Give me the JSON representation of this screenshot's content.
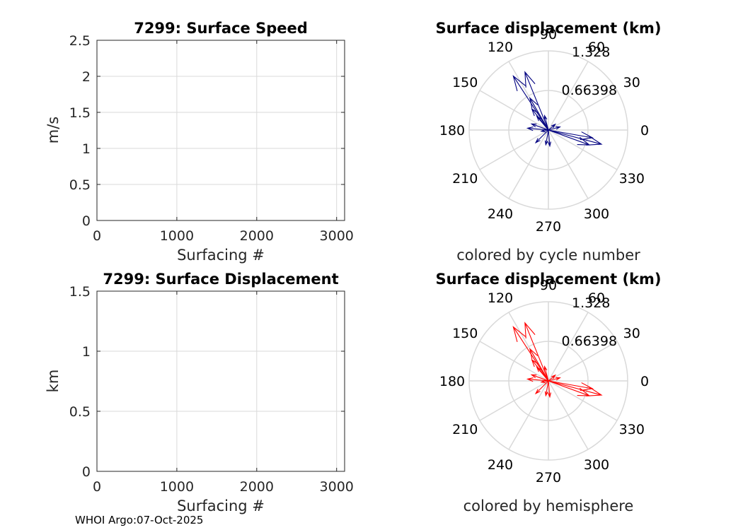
{
  "footer": "WHOI Argo:07-Oct-2025",
  "colors": {
    "vectors_cycle": "#000080",
    "vectors_hemisphere": "#ff0000",
    "grid": "#d9d9d9",
    "axis": "#262626"
  },
  "chart_data": [
    {
      "id": "speed",
      "type": "line",
      "title": "7299: Surface Speed",
      "xlabel": "Surfacing #",
      "ylabel": "m/s",
      "xlim": [
        0,
        3100
      ],
      "ylim": [
        0,
        2.5
      ],
      "xticks": [
        0,
        1000,
        2000,
        3000
      ],
      "xtick_labels": [
        "0",
        "1000",
        "2000",
        "3000"
      ],
      "yticks": [
        0,
        0.5,
        1,
        1.5,
        2,
        2.5
      ],
      "ytick_labels": [
        "0",
        "0.5",
        "1",
        "1.5",
        "2",
        "2.5"
      ],
      "grid": true,
      "series": []
    },
    {
      "id": "disp",
      "type": "line",
      "title": "7299: Surface Displacement",
      "xlabel": "Surfacing #",
      "ylabel": "km",
      "xlim": [
        0,
        3100
      ],
      "ylim": [
        0,
        1.5
      ],
      "xticks": [
        0,
        1000,
        2000,
        3000
      ],
      "xtick_labels": [
        "0",
        "1000",
        "2000",
        "3000"
      ],
      "yticks": [
        0,
        0.5,
        1,
        1.5
      ],
      "ytick_labels": [
        "0",
        "0.5",
        "1",
        "1.5"
      ],
      "grid": true,
      "series": []
    },
    {
      "id": "polar_cycle",
      "type": "scatter",
      "subtype": "polar-compass",
      "title": "Surface displacement (km)",
      "caption": "colored by cycle number",
      "rmax": 1.328,
      "rings": [
        0.66398,
        1.328
      ],
      "ring_labels": [
        "0.66398",
        "1.328"
      ],
      "angles": [
        0,
        30,
        60,
        90,
        120,
        150,
        180,
        210,
        240,
        270,
        300,
        330
      ],
      "angle_labels": [
        "0",
        "30",
        "60",
        "90",
        "120",
        "150",
        "180",
        "210",
        "240",
        "270",
        "300",
        "330"
      ],
      "vector_color": "#000080",
      "vectors": [
        {
          "angle": 112,
          "r": 1.05
        },
        {
          "angle": 123,
          "r": 1.08
        },
        {
          "angle": 120,
          "r": 0.62
        },
        {
          "angle": 128,
          "r": 0.45
        },
        {
          "angle": 130,
          "r": 0.3
        },
        {
          "angle": 105,
          "r": 0.25
        },
        {
          "angle": 160,
          "r": 0.3
        },
        {
          "angle": 175,
          "r": 0.35
        },
        {
          "angle": 190,
          "r": 0.12
        },
        {
          "angle": 225,
          "r": 0.3
        },
        {
          "angle": 260,
          "r": 0.25
        },
        {
          "angle": 275,
          "r": 0.27
        },
        {
          "angle": 345,
          "r": 0.92
        },
        {
          "angle": 340,
          "r": 0.73
        },
        {
          "angle": 350,
          "r": 0.75
        },
        {
          "angle": 15,
          "r": 0.2
        },
        {
          "angle": 40,
          "r": 0.15
        }
      ]
    },
    {
      "id": "polar_hemi",
      "type": "scatter",
      "subtype": "polar-compass",
      "title": "Surface displacement (km)",
      "caption": "colored by hemisphere",
      "rmax": 1.328,
      "rings": [
        0.66398,
        1.328
      ],
      "ring_labels": [
        "0.66398",
        "1.328"
      ],
      "angles": [
        0,
        30,
        60,
        90,
        120,
        150,
        180,
        210,
        240,
        270,
        300,
        330
      ],
      "angle_labels": [
        "0",
        "30",
        "60",
        "90",
        "120",
        "150",
        "180",
        "210",
        "240",
        "270",
        "300",
        "330"
      ],
      "vector_color": "#ff0000",
      "vectors": [
        {
          "angle": 112,
          "r": 1.05
        },
        {
          "angle": 123,
          "r": 1.08
        },
        {
          "angle": 120,
          "r": 0.62
        },
        {
          "angle": 128,
          "r": 0.45
        },
        {
          "angle": 130,
          "r": 0.3
        },
        {
          "angle": 105,
          "r": 0.25
        },
        {
          "angle": 160,
          "r": 0.3
        },
        {
          "angle": 175,
          "r": 0.35
        },
        {
          "angle": 190,
          "r": 0.12
        },
        {
          "angle": 225,
          "r": 0.3
        },
        {
          "angle": 260,
          "r": 0.25
        },
        {
          "angle": 275,
          "r": 0.27
        },
        {
          "angle": 345,
          "r": 0.92
        },
        {
          "angle": 340,
          "r": 0.73
        },
        {
          "angle": 350,
          "r": 0.75
        },
        {
          "angle": 15,
          "r": 0.2
        },
        {
          "angle": 40,
          "r": 0.15
        }
      ]
    }
  ]
}
